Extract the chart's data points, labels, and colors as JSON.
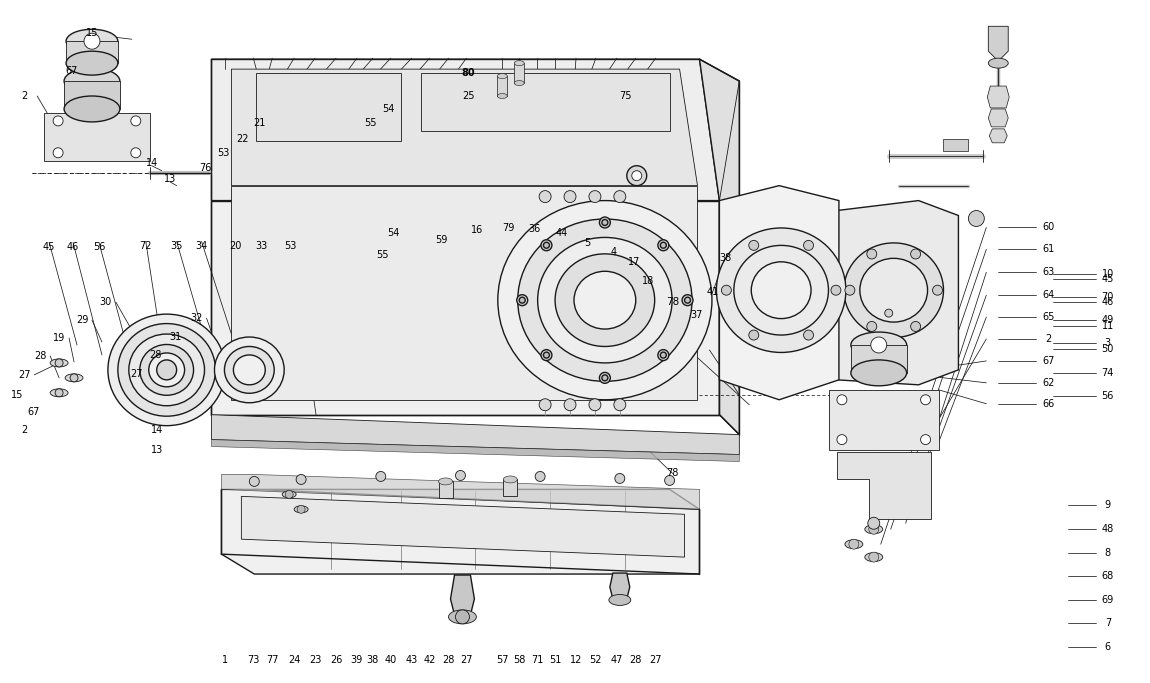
{
  "bg_color": "#ffffff",
  "lc": "#1a1a1a",
  "lw_main": 1.0,
  "lw_thin": 0.6,
  "lw_leader": 0.55,
  "fc_body": "#f4f4f4",
  "fc_mid": "#e8e8e8",
  "fc_dark": "#d8d8d8",
  "fc_light": "#fafafa",
  "figsize": [
    11.5,
    6.83
  ],
  "dpi": 100,
  "top_labels": [
    [
      224,
      661,
      "1"
    ],
    [
      252,
      661,
      "73"
    ],
    [
      271,
      661,
      "77"
    ],
    [
      293,
      661,
      "24"
    ],
    [
      314,
      661,
      "23"
    ],
    [
      335,
      661,
      "26"
    ],
    [
      356,
      661,
      "39"
    ],
    [
      372,
      661,
      "38"
    ],
    [
      390,
      661,
      "40"
    ],
    [
      411,
      661,
      "43"
    ],
    [
      429,
      661,
      "42"
    ],
    [
      448,
      661,
      "28"
    ],
    [
      466,
      661,
      "27"
    ],
    [
      502,
      661,
      "57"
    ],
    [
      519,
      661,
      "58"
    ],
    [
      537,
      661,
      "71"
    ],
    [
      555,
      661,
      "51"
    ],
    [
      576,
      661,
      "12"
    ],
    [
      596,
      661,
      "52"
    ],
    [
      617,
      661,
      "47"
    ],
    [
      636,
      661,
      "28"
    ],
    [
      656,
      661,
      "27"
    ]
  ],
  "right_top_labels": [
    [
      1110,
      648,
      "6"
    ],
    [
      1110,
      624,
      "7"
    ],
    [
      1110,
      601,
      "69"
    ],
    [
      1110,
      577,
      "68"
    ],
    [
      1110,
      554,
      "8"
    ],
    [
      1110,
      530,
      "48"
    ],
    [
      1110,
      506,
      "9"
    ]
  ],
  "right_mid_labels": [
    [
      1110,
      343,
      "3"
    ],
    [
      1110,
      320,
      "49"
    ],
    [
      1110,
      297,
      "70"
    ],
    [
      1110,
      274,
      "10"
    ]
  ],
  "right_side_labels": [
    [
      1110,
      396,
      "56"
    ],
    [
      1110,
      373,
      "74"
    ],
    [
      1110,
      349,
      "50"
    ],
    [
      1110,
      326,
      "11"
    ],
    [
      1110,
      302,
      "46"
    ],
    [
      1110,
      279,
      "45"
    ]
  ],
  "left_mid_labels": [
    [
      22,
      375,
      "27"
    ],
    [
      38,
      356,
      "28"
    ],
    [
      57,
      338,
      "19"
    ],
    [
      80,
      320,
      "29"
    ],
    [
      104,
      302,
      "30"
    ],
    [
      135,
      374,
      "27"
    ],
    [
      154,
      355,
      "28"
    ],
    [
      174,
      337,
      "31"
    ],
    [
      195,
      318,
      "32"
    ]
  ],
  "left_bot_labels": [
    [
      47,
      247,
      "45"
    ],
    [
      71,
      247,
      "46"
    ],
    [
      97,
      247,
      "56"
    ],
    [
      144,
      246,
      "72"
    ],
    [
      175,
      246,
      "35"
    ],
    [
      200,
      246,
      "34"
    ],
    [
      234,
      246,
      "20"
    ],
    [
      260,
      246,
      "33"
    ],
    [
      289,
      246,
      "53"
    ]
  ],
  "right_mount_labels": [
    [
      1050,
      404,
      "66"
    ],
    [
      1050,
      383,
      "62"
    ],
    [
      1050,
      361,
      "67"
    ],
    [
      1050,
      339,
      "2"
    ],
    [
      1050,
      317,
      "65"
    ],
    [
      1050,
      295,
      "64"
    ],
    [
      1050,
      272,
      "63"
    ],
    [
      1050,
      249,
      "61"
    ],
    [
      1050,
      227,
      "60"
    ]
  ],
  "center_area_labels": [
    [
      673,
      474,
      "78"
    ],
    [
      713,
      292,
      "41"
    ],
    [
      697,
      315,
      "37"
    ],
    [
      648,
      281,
      "18"
    ],
    [
      634,
      262,
      "17"
    ],
    [
      726,
      258,
      "38"
    ]
  ],
  "bot_center_labels": [
    [
      382,
      255,
      "55"
    ],
    [
      393,
      233,
      "54"
    ],
    [
      441,
      240,
      "59"
    ],
    [
      477,
      230,
      "16"
    ],
    [
      508,
      228,
      "79"
    ],
    [
      534,
      229,
      "36"
    ],
    [
      562,
      233,
      "44"
    ],
    [
      587,
      243,
      "5"
    ],
    [
      614,
      252,
      "4"
    ]
  ],
  "sump_labels": [
    [
      204,
      167,
      "76"
    ],
    [
      222,
      152,
      "53"
    ],
    [
      241,
      138,
      "22"
    ],
    [
      258,
      122,
      "21"
    ],
    [
      370,
      122,
      "55"
    ],
    [
      388,
      108,
      "54"
    ]
  ],
  "special_labels": [
    [
      468,
      95,
      "25"
    ],
    [
      626,
      95,
      "75"
    ],
    [
      468,
      72,
      "80",
      true
    ]
  ]
}
